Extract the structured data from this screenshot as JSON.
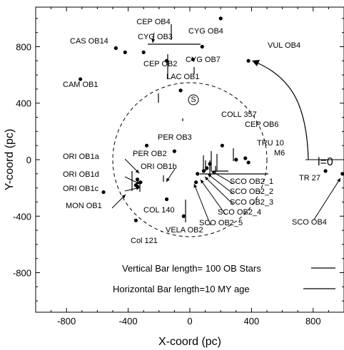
{
  "chart_data": {
    "type": "scatter",
    "title": "",
    "xlabel": "X-coord (pc)",
    "ylabel": "Y-coord (pc)",
    "xlim": [
      -1000,
      1000
    ],
    "ylim": [
      -1080,
      1080
    ],
    "xticks": [
      -800,
      -400,
      0,
      400,
      800
    ],
    "yticks": [
      -800,
      -400,
      0,
      400,
      800
    ],
    "sun_symbol": "S",
    "circle_radius_pc": 500,
    "l0_label": "l=0",
    "legend": {
      "vertical": "Vertical Bar length= 100 OB Stars",
      "horizontal": "Horizontal Bar length=10 MY age"
    },
    "points": [
      {
        "name": "CEP OB4",
        "x": -420,
        "y": 760
      },
      {
        "name": "CAS OB14",
        "x": -480,
        "y": 790
      },
      {
        "name": "CYG OB3",
        "x": -300,
        "y": 760
      },
      {
        "name": "CEP OB2",
        "x": -150,
        "y": 700
      },
      {
        "name": "CYG OB4",
        "x": 80,
        "y": 800
      },
      {
        "name": "CYG OB7",
        "x": 20,
        "y": 710
      },
      {
        "name": "VUL OB4",
        "x": 380,
        "y": 700
      },
      {
        "name": "CAM OB1",
        "x": -710,
        "y": 570
      },
      {
        "name": "LAC OB1",
        "x": -60,
        "y": 490
      },
      {
        "name": "CEP OB6",
        "x": 300,
        "y": 0
      },
      {
        "name": "COLL 357",
        "x": 210,
        "y": 100
      },
      {
        "name": "TRU 10",
        "x": 360,
        "y": 10
      },
      {
        "name": "M6",
        "x": 380,
        "y": -20
      },
      {
        "name": "PER OB3",
        "x": -280,
        "y": 100
      },
      {
        "name": "PER OB2",
        "x": -100,
        "y": 60
      },
      {
        "name": "ORI OB1a",
        "x": -340,
        "y": -140
      },
      {
        "name": "ORI OB1b",
        "x": -320,
        "y": -160
      },
      {
        "name": "ORI OB1d",
        "x": -350,
        "y": -180
      },
      {
        "name": "ORI OB1c",
        "x": -340,
        "y": -190
      },
      {
        "name": "MON OB1",
        "x": -560,
        "y": -230
      },
      {
        "name": "COL 140",
        "x": -150,
        "y": -280
      },
      {
        "name": "Col 121",
        "x": -350,
        "y": -430
      },
      {
        "name": "VELA OB2",
        "x": -40,
        "y": -400
      },
      {
        "name": "SCO OB2_1",
        "x": 130,
        "y": -30
      },
      {
        "name": "SCO OB2_2",
        "x": 110,
        "y": -60
      },
      {
        "name": "SCO OB2_3",
        "x": 90,
        "y": -80
      },
      {
        "name": "SCO OB2_4",
        "x": 50,
        "y": -100
      },
      {
        "name": "SCO OB2_5",
        "x": 40,
        "y": -160
      },
      {
        "name": "TR 27",
        "x": 880,
        "y": -80
      },
      {
        "name": "SCO OB4",
        "x": 990,
        "y": -100
      },
      {
        "name": "",
        "x": 200,
        "y": 1000
      }
    ]
  }
}
